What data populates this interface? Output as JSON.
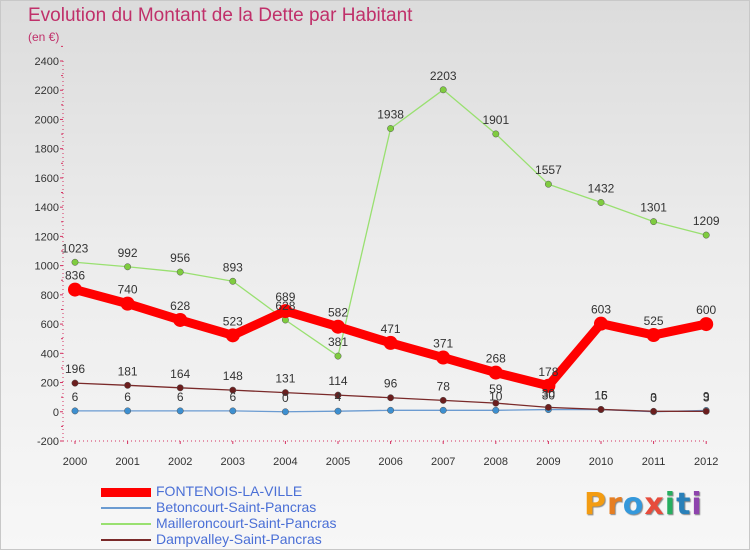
{
  "title": "Evolution du Montant de la Dette par Habitant",
  "subtitle": "(en €)",
  "logo": {
    "text": "Proxiti",
    "colors": [
      "#f39c12",
      "#e67e22",
      "#3498db",
      "#e74c3c",
      "#27ae60",
      "#2980b9",
      "#8e44ad"
    ]
  },
  "chart_data": {
    "type": "line",
    "title": "Evolution du Montant de la Dette par Habitant",
    "subtitle": "(en €)",
    "x": [
      "2000",
      "2001",
      "2002",
      "2003",
      "2004",
      "2005",
      "2006",
      "2007",
      "2008",
      "2009",
      "2010",
      "2011",
      "2012"
    ],
    "ylim": [
      -200,
      2400
    ],
    "yticks": [
      -200,
      0,
      200,
      400,
      600,
      800,
      1000,
      1200,
      1400,
      1600,
      1800,
      2000,
      2200,
      2400
    ],
    "grid": false,
    "legend_position": "bottom-left",
    "series": [
      {
        "name": "FONTENOIS-LA-VILLE",
        "color": "#ff0000",
        "marker_color": "#ff0000",
        "values": [
          836,
          740,
          628,
          523,
          689,
          582,
          471,
          371,
          268,
          178,
          603,
          525,
          600
        ],
        "labels": [
          "836",
          "740",
          "628",
          "523",
          "689",
          "582",
          "471",
          "371",
          "268",
          "178",
          "603",
          "525",
          "600"
        ]
      },
      {
        "name": "Betoncourt-Saint-Pancras",
        "color": "#6b9bd1",
        "marker_color": "#3d8fd0",
        "values": [
          6,
          6,
          6,
          6,
          0,
          4,
          10,
          10,
          10,
          15,
          15,
          0,
          9
        ],
        "labels": [
          "6",
          "6",
          "6",
          "6",
          "0",
          "4",
          "",
          "",
          "",
          "",
          "15",
          "0",
          "9"
        ]
      },
      {
        "name": "Mailleroncourt-Saint-Pancras",
        "color": "#99e070",
        "marker_color": "#7fcc3f",
        "values": [
          1023,
          992,
          956,
          893,
          628,
          381,
          1938,
          2203,
          1901,
          1557,
          1432,
          1301,
          1209
        ],
        "labels": [
          "1023",
          "992",
          "956",
          "893",
          "628",
          "381",
          "1938",
          "2203",
          "1901",
          "1557",
          "1432",
          "1301",
          "1209"
        ]
      },
      {
        "name": "Dampvalley-Saint-Pancras",
        "color": "#7a2a2a",
        "marker_color": "#6b1e1e",
        "values": [
          196,
          181,
          164,
          148,
          131,
          114,
          96,
          78,
          59,
          30,
          16,
          3,
          3
        ],
        "labels": [
          "196",
          "181",
          "164",
          "148",
          "131",
          "114",
          "96",
          "78",
          "59",
          "30",
          "16",
          "3",
          "3"
        ]
      }
    ],
    "extra_labels": [
      {
        "x": "2008",
        "text": "10"
      },
      {
        "x": "2009",
        "text": "30"
      }
    ]
  }
}
